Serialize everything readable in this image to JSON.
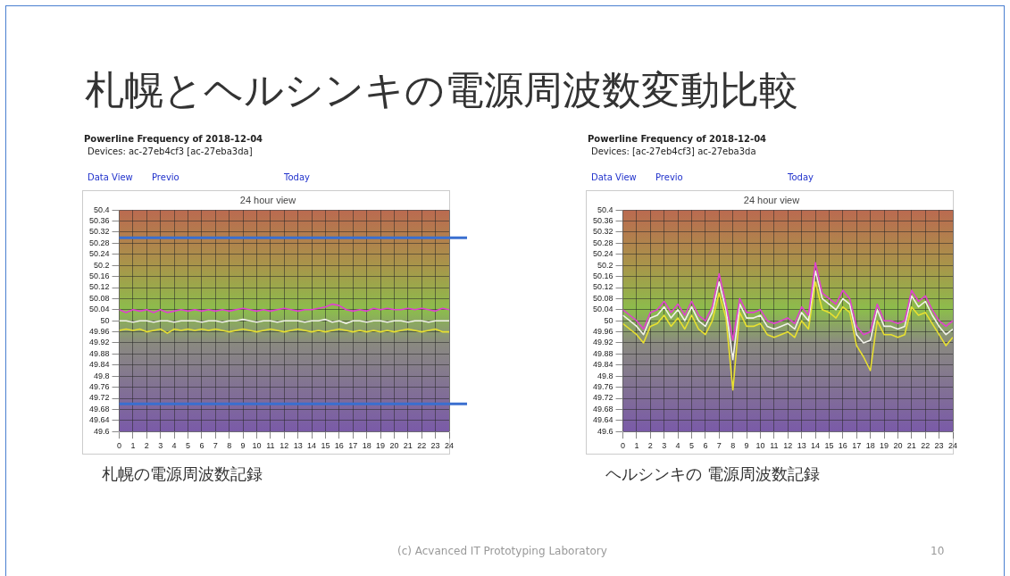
{
  "chart_data": [
    {
      "type": "other",
      "title": "札幌とヘルシンキの電源周波数変動比較",
      "annotations": [
        "(c) Acvanced IT Prototyping Laboratory",
        "10"
      ]
    },
    {
      "type": "line",
      "title": "24 hour view",
      "annotations": [
        "Powerline Frequency of 2018-12-04",
        "Devices: ac-27eb4cf3 [ac-27eba3da]",
        "Data View",
        "Previo",
        "Today",
        "札幌の電源周波数記録"
      ],
      "x": [
        0,
        0.5,
        1,
        1.5,
        2,
        2.5,
        3,
        3.5,
        4,
        4.5,
        5,
        5.5,
        6,
        6.5,
        7,
        7.5,
        8,
        8.5,
        9,
        9.5,
        10,
        10.5,
        11,
        11.5,
        12,
        12.5,
        13,
        13.5,
        14,
        14.5,
        15,
        15.5,
        16,
        16.5,
        17,
        17.5,
        18,
        18.5,
        19,
        19.5,
        20,
        20.5,
        21,
        21.5,
        22,
        22.5,
        23,
        23.5,
        24
      ],
      "xlim": [
        0,
        24
      ],
      "xticks": [
        0,
        1,
        2,
        3,
        4,
        5,
        6,
        7,
        8,
        9,
        10,
        11,
        12,
        13,
        14,
        15,
        16,
        17,
        18,
        19,
        20,
        21,
        22,
        23,
        24
      ],
      "ylim": [
        49.6,
        50.4
      ],
      "yticks": [
        49.6,
        49.64,
        49.68,
        49.72,
        49.76,
        49.8,
        49.84,
        49.88,
        49.92,
        49.96,
        50,
        50.04,
        50.08,
        50.12,
        50.16,
        50.2,
        50.24,
        50.28,
        50.32,
        50.36,
        50.4
      ],
      "grid": true,
      "legend": false,
      "marker": "none",
      "line_style": "solid",
      "ref_lines": [
        {
          "axis": "y",
          "value": 50.3,
          "color": "#3a6fd0"
        },
        {
          "axis": "y",
          "value": 49.7,
          "color": "#3a6fd0"
        }
      ],
      "series": [
        {
          "color": "#e040d0",
          "values": [
            50.04,
            50.03,
            50.04,
            50.035,
            50.04,
            50.03,
            50.04,
            50.03,
            50.035,
            50.04,
            50.035,
            50.04,
            50.035,
            50.04,
            50.035,
            50.04,
            50.035,
            50.04,
            50.045,
            50.04,
            50.035,
            50.04,
            50.035,
            50.04,
            50.045,
            50.04,
            50.035,
            50.04,
            50.04,
            50.045,
            50.05,
            50.06,
            50.055,
            50.04,
            50.035,
            50.04,
            50.035,
            50.045,
            50.04,
            50.045,
            50.04,
            50.04,
            50.045,
            50.04,
            50.045,
            50.04,
            50.035,
            50.045,
            50.04
          ]
        },
        {
          "color": "#f2f2ea",
          "values": [
            50.0,
            50.0,
            49.995,
            50.0,
            50.0,
            49.995,
            50.0,
            50.0,
            49.995,
            50.0,
            50.0,
            50.0,
            49.995,
            50.0,
            50.0,
            49.995,
            50.0,
            50.0,
            50.005,
            50.0,
            49.995,
            50.0,
            50.0,
            49.995,
            50.0,
            50.0,
            50.0,
            49.995,
            50.0,
            50.0,
            50.005,
            49.995,
            50.0,
            49.99,
            50.0,
            50.0,
            49.995,
            50.0,
            50.0,
            49.995,
            50.0,
            50.0,
            49.995,
            50.0,
            50.0,
            49.995,
            50.0,
            50.0,
            50.0
          ]
        },
        {
          "color": "#e8e030",
          "values": [
            49.965,
            49.97,
            49.965,
            49.97,
            49.96,
            49.965,
            49.97,
            49.955,
            49.97,
            49.965,
            49.97,
            49.965,
            49.97,
            49.965,
            49.97,
            49.965,
            49.96,
            49.965,
            49.97,
            49.965,
            49.96,
            49.965,
            49.97,
            49.965,
            49.96,
            49.965,
            49.97,
            49.965,
            49.96,
            49.965,
            49.96,
            49.965,
            49.97,
            49.965,
            49.96,
            49.965,
            49.96,
            49.965,
            49.96,
            49.965,
            49.96,
            49.965,
            49.97,
            49.965,
            49.96,
            49.965,
            49.97,
            49.96,
            49.96
          ]
        }
      ]
    },
    {
      "type": "line",
      "title": "24 hour view",
      "annotations": [
        "Powerline Frequency of 2018-12-04",
        "Devices: [ac-27eb4cf3] ac-27eba3da",
        "Data View",
        "Previo",
        "Today",
        "ヘルシンキの 電源周波数記録"
      ],
      "x": [
        0,
        0.5,
        1,
        1.5,
        2,
        2.5,
        3,
        3.5,
        4,
        4.5,
        5,
        5.5,
        6,
        6.5,
        7,
        7.5,
        8,
        8.5,
        9,
        9.5,
        10,
        10.5,
        11,
        11.5,
        12,
        12.5,
        13,
        13.5,
        14,
        14.5,
        15,
        15.5,
        16,
        16.5,
        17,
        17.5,
        18,
        18.5,
        19,
        19.5,
        20,
        20.5,
        21,
        21.5,
        22,
        22.5,
        23,
        23.5,
        24
      ],
      "xlim": [
        0,
        24
      ],
      "xticks": [
        0,
        1,
        2,
        3,
        4,
        5,
        6,
        7,
        8,
        9,
        10,
        11,
        12,
        13,
        14,
        15,
        16,
        17,
        18,
        19,
        20,
        21,
        22,
        23,
        24
      ],
      "ylim": [
        49.6,
        50.4
      ],
      "yticks": [
        49.6,
        49.64,
        49.68,
        49.72,
        49.76,
        49.8,
        49.84,
        49.88,
        49.92,
        49.96,
        50,
        50.04,
        50.08,
        50.12,
        50.16,
        50.2,
        50.24,
        50.28,
        50.32,
        50.36,
        50.4
      ],
      "grid": true,
      "legend": false,
      "marker": "none",
      "line_style": "solid",
      "series": [
        {
          "color": "#e040d0",
          "values": [
            50.04,
            50.02,
            50.0,
            49.97,
            50.03,
            50.04,
            50.07,
            50.03,
            50.06,
            50.02,
            50.07,
            50.02,
            50.0,
            50.05,
            50.17,
            50.06,
            49.93,
            50.08,
            50.03,
            50.03,
            50.04,
            50.0,
            49.99,
            50.0,
            50.01,
            49.99,
            50.05,
            50.02,
            50.21,
            50.1,
            50.08,
            50.06,
            50.11,
            50.08,
            49.98,
            49.95,
            49.96,
            50.06,
            50.0,
            50.0,
            49.99,
            50.0,
            50.11,
            50.07,
            50.09,
            50.04,
            50.0,
            49.98,
            50.0
          ]
        },
        {
          "color": "#f2f2ea",
          "values": [
            50.02,
            50.0,
            49.98,
            49.95,
            50.01,
            50.02,
            50.05,
            50.01,
            50.04,
            50.0,
            50.05,
            50.0,
            49.98,
            50.03,
            50.14,
            50.04,
            49.86,
            50.06,
            50.01,
            50.01,
            50.02,
            49.98,
            49.97,
            49.98,
            49.99,
            49.97,
            50.03,
            50.0,
            50.18,
            50.08,
            50.06,
            50.04,
            50.08,
            50.06,
            49.95,
            49.92,
            49.93,
            50.04,
            49.98,
            49.98,
            49.97,
            49.98,
            50.09,
            50.05,
            50.07,
            50.02,
            49.98,
            49.95,
            49.97
          ]
        },
        {
          "color": "#e8e030",
          "values": [
            49.99,
            49.97,
            49.95,
            49.92,
            49.98,
            49.99,
            50.02,
            49.98,
            50.01,
            49.97,
            50.02,
            49.97,
            49.95,
            50.0,
            50.1,
            50.01,
            49.75,
            50.03,
            49.98,
            49.98,
            49.99,
            49.95,
            49.94,
            49.95,
            49.96,
            49.94,
            50.0,
            49.97,
            50.14,
            50.04,
            50.03,
            50.01,
            50.05,
            50.03,
            49.91,
            49.87,
            49.82,
            50.0,
            49.95,
            49.95,
            49.94,
            49.95,
            50.05,
            50.02,
            50.03,
            49.99,
            49.95,
            49.91,
            49.94
          ]
        }
      ]
    }
  ]
}
